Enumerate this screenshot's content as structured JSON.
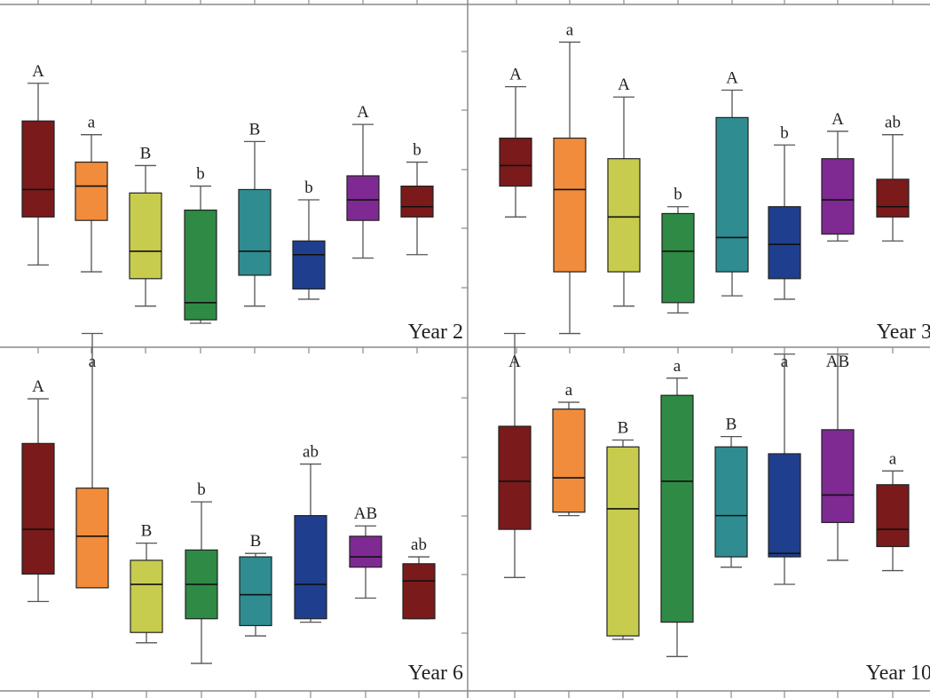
{
  "colors": [
    "#7a1a1a",
    "#f08c3c",
    "#c8cc4e",
    "#2e8a44",
    "#2f8c90",
    "#1f3f8e",
    "#7e2a92",
    "#7a1a1a"
  ],
  "chart_data": [
    {
      "type": "box",
      "panel_label": "Year 2",
      "ylim": [
        0,
        100
      ],
      "boxes": [
        {
          "lw": 24,
          "q1": 38,
          "med": 46,
          "q3": 66,
          "uw": 77,
          "letter": "A"
        },
        {
          "lw": 22,
          "q1": 37,
          "med": 47,
          "q3": 54,
          "uw": 62,
          "letter": "a"
        },
        {
          "lw": 12,
          "q1": 20,
          "med": 28,
          "q3": 45,
          "uw": 53,
          "letter": "B"
        },
        {
          "lw": 7,
          "q1": 8,
          "med": 13,
          "q3": 40,
          "uw": 47,
          "letter": "b"
        },
        {
          "lw": 12,
          "q1": 21,
          "med": 28,
          "q3": 46,
          "uw": 60,
          "letter": "B"
        },
        {
          "lw": 14,
          "q1": 17,
          "med": 27,
          "q3": 31,
          "uw": 43,
          "letter": "b"
        },
        {
          "lw": 26,
          "q1": 37,
          "med": 43,
          "q3": 50,
          "uw": 65,
          "letter": "A"
        },
        {
          "lw": 27,
          "q1": 38,
          "med": 41,
          "q3": 47,
          "uw": 54,
          "letter": "b"
        }
      ]
    },
    {
      "type": "box",
      "panel_label": "Year 3",
      "ylim": [
        0,
        100
      ],
      "boxes": [
        {
          "lw": 38,
          "q1": 47,
          "med": 53,
          "q3": 61,
          "uw": 76,
          "letter": "A"
        },
        {
          "lw": 4,
          "q1": 22,
          "med": 46,
          "q3": 61,
          "uw": 89,
          "letter": "a"
        },
        {
          "lw": 12,
          "q1": 22,
          "med": 38,
          "q3": 55,
          "uw": 73,
          "letter": "A"
        },
        {
          "lw": 10,
          "q1": 13,
          "med": 28,
          "q3": 39,
          "uw": 41,
          "letter": "b"
        },
        {
          "lw": 15,
          "q1": 22,
          "med": 32,
          "q3": 67,
          "uw": 75,
          "letter": "A"
        },
        {
          "lw": 14,
          "q1": 20,
          "med": 30,
          "q3": 41,
          "uw": 59,
          "letter": "b"
        },
        {
          "lw": 31,
          "q1": 33,
          "med": 43,
          "q3": 55,
          "uw": 63,
          "letter": "A"
        },
        {
          "lw": 31,
          "q1": 38,
          "med": 41,
          "q3": 49,
          "uw": 62,
          "letter": "ab"
        }
      ]
    },
    {
      "type": "box",
      "panel_label": "Year 6",
      "ylim": [
        0,
        100
      ],
      "boxes": [
        {
          "lw": 26,
          "q1": 34,
          "med": 47,
          "q3": 72,
          "uw": 85,
          "letter": "A"
        },
        {
          "lw": 30,
          "q1": 30,
          "med": 45,
          "q3": 59,
          "uw": 104,
          "letter": "a"
        },
        {
          "lw": 14,
          "q1": 17,
          "med": 31,
          "q3": 38,
          "uw": 43,
          "letter": "B"
        },
        {
          "lw": 8,
          "q1": 21,
          "med": 31,
          "q3": 41,
          "uw": 55,
          "letter": "b"
        },
        {
          "lw": 16,
          "q1": 19,
          "med": 28,
          "q3": 39,
          "uw": 40,
          "letter": "B"
        },
        {
          "lw": 20,
          "q1": 21,
          "med": 31,
          "q3": 51,
          "uw": 66,
          "letter": "ab"
        },
        {
          "lw": 27,
          "q1": 36,
          "med": 39,
          "q3": 45,
          "uw": 48,
          "letter": "AB"
        },
        {
          "lw": 21,
          "q1": 21,
          "med": 32,
          "q3": 37,
          "uw": 39,
          "letter": "ab"
        }
      ]
    },
    {
      "type": "box",
      "panel_label": "Year 10",
      "ylim": [
        0,
        100
      ],
      "boxes": [
        {
          "lw": 33,
          "q1": 47,
          "med": 61,
          "q3": 77,
          "uw": 104,
          "letter": "A"
        },
        {
          "lw": 51,
          "q1": 52,
          "med": 62,
          "q3": 82,
          "uw": 84,
          "letter": "a"
        },
        {
          "lw": 15,
          "q1": 16,
          "med": 53,
          "q3": 71,
          "uw": 73,
          "letter": "B"
        },
        {
          "lw": 10,
          "q1": 20,
          "med": 61,
          "q3": 86,
          "uw": 91,
          "letter": "a"
        },
        {
          "lw": 36,
          "q1": 39,
          "med": 51,
          "q3": 71,
          "uw": 74,
          "letter": "B"
        },
        {
          "lw": 31,
          "q1": 39,
          "med": 40,
          "q3": 69,
          "uw": 98,
          "letter": "a"
        },
        {
          "lw": 38,
          "q1": 49,
          "med": 57,
          "q3": 76,
          "uw": 98,
          "letter": "AB"
        },
        {
          "lw": 35,
          "q1": 42,
          "med": 47,
          "q3": 60,
          "uw": 64,
          "letter": "a"
        }
      ]
    }
  ]
}
